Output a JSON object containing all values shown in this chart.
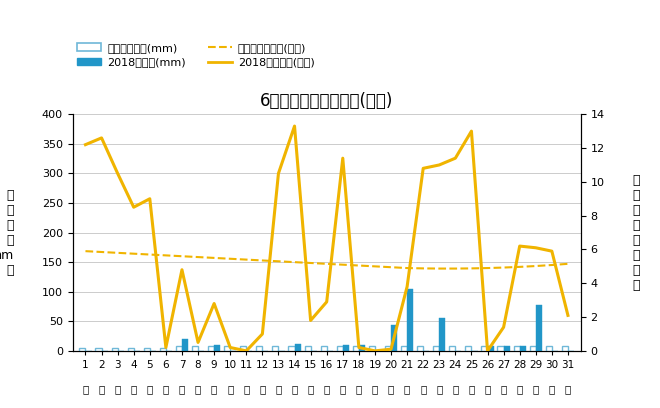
{
  "title": "6月降水量・日照時間(日別)",
  "days": [
    1,
    2,
    3,
    4,
    5,
    6,
    7,
    8,
    9,
    10,
    11,
    12,
    13,
    14,
    15,
    16,
    17,
    18,
    19,
    20,
    21,
    22,
    23,
    24,
    25,
    26,
    27,
    28,
    29,
    30,
    31
  ],
  "precip_avg": [
    5,
    5,
    5,
    5,
    5,
    5,
    8,
    8,
    8,
    8,
    8,
    8,
    8,
    8,
    8,
    8,
    8,
    8,
    8,
    8,
    8,
    8,
    8,
    8,
    8,
    8,
    8,
    8,
    8,
    8,
    8
  ],
  "precip_2018": [
    0,
    0,
    0,
    0,
    0,
    0,
    20,
    0,
    10,
    0,
    0,
    0,
    0,
    12,
    0,
    0,
    10,
    10,
    0,
    44,
    105,
    0,
    55,
    0,
    0,
    8,
    8,
    8,
    78,
    0,
    0
  ],
  "sunshine_avg": [
    5.9,
    5.85,
    5.8,
    5.75,
    5.7,
    5.65,
    5.6,
    5.55,
    5.5,
    5.45,
    5.4,
    5.35,
    5.3,
    5.25,
    5.2,
    5.15,
    5.1,
    5.05,
    5.0,
    4.95,
    4.9,
    4.88,
    4.87,
    4.87,
    4.88,
    4.9,
    4.93,
    4.97,
    5.02,
    5.08,
    5.15
  ],
  "sunshine_2018": [
    12.2,
    12.6,
    10.5,
    8.5,
    9.0,
    0.2,
    4.8,
    0.5,
    2.8,
    0.2,
    0.0,
    1.0,
    10.5,
    13.3,
    1.8,
    2.9,
    11.4,
    0.2,
    0.0,
    0.1,
    3.8,
    10.8,
    11.0,
    11.4,
    13.0,
    0.0,
    1.4,
    6.2,
    6.1,
    5.9,
    2.1
  ],
  "precip_avg_color": "#6fb8d8",
  "precip_2018_color": "#2196c8",
  "sunshine_avg_color": "#f0b400",
  "sunshine_2018_color": "#f0b400",
  "ylabel_left": "降\n水\n量\n（\nmm\n）",
  "ylabel_right": "日\n照\n時\n間\n（\n時\n間\n）",
  "ylim_left": [
    0,
    400
  ],
  "ylim_right": [
    0,
    14
  ],
  "yticks_left": [
    0,
    50,
    100,
    150,
    200,
    250,
    300,
    350,
    400
  ],
  "yticks_right": [
    0,
    2,
    4,
    6,
    8,
    10,
    12,
    14
  ],
  "legend_labels": [
    "降水量平年値(mm)",
    "2018降水量(mm)",
    "日照時間平年値(時間)",
    "2018日照時間(時間)"
  ],
  "background_color": "#ffffff"
}
